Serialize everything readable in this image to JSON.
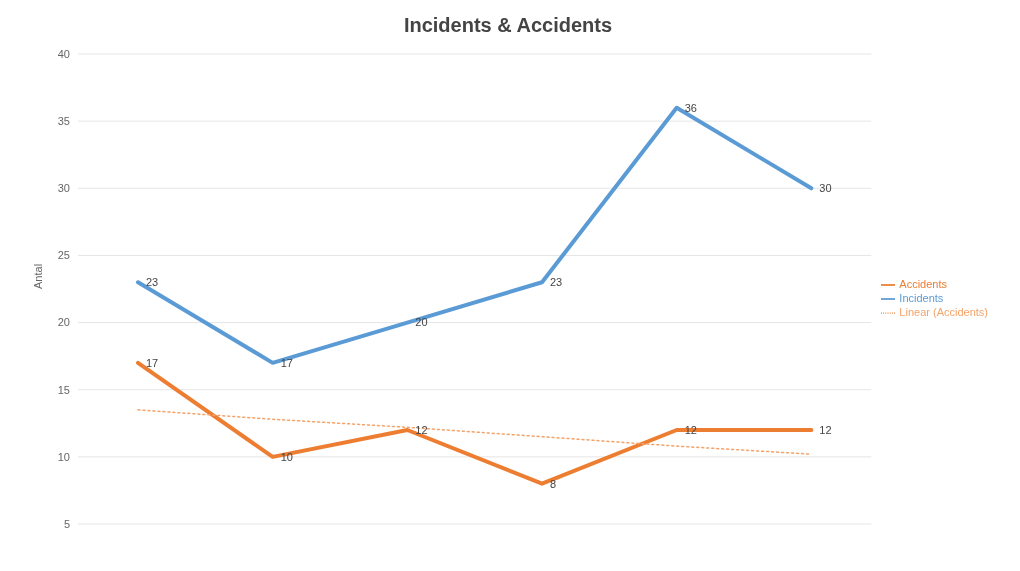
{
  "chart_data": {
    "type": "line",
    "title": "Incidents & Accidents",
    "ylabel": "Antal",
    "categories": [
      null,
      null,
      null,
      null,
      null,
      null
    ],
    "series": [
      {
        "name": "Incidents",
        "color": "#5b9bd5",
        "values": [
          23,
          17,
          20,
          23,
          36,
          30
        ],
        "value_labels": [
          "23",
          "17",
          "20",
          "23",
          "36",
          "30"
        ],
        "line_style": "solid"
      },
      {
        "name": "Accidents",
        "color": "#ed7d31",
        "values": [
          17,
          10,
          12,
          8,
          12,
          12
        ],
        "value_labels": [
          "17",
          "10",
          "12",
          "8",
          "12",
          "12"
        ],
        "line_style": "solid"
      },
      {
        "name": "Linear (Accidents)",
        "type": "line",
        "color": "#f4a36a",
        "values": [
          13.5,
          12.8,
          12.2,
          11.5,
          10.8,
          10.2
        ],
        "line_style": "dotted"
      }
    ],
    "ylim": [
      5,
      40
    ],
    "yticks": [
      5,
      10,
      15,
      20,
      25,
      30,
      35,
      40
    ],
    "grid": "y",
    "legend": "right",
    "marker": "none",
    "tick_labels": "y"
  }
}
